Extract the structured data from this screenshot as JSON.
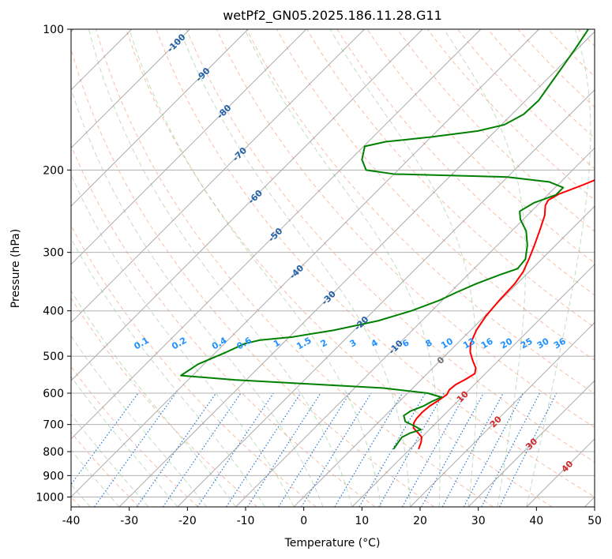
{
  "chart_data": {
    "type": "line",
    "title": "wetPf2_GN05.2025.186.11.28.G11",
    "xlabel": "Temperature (°C)",
    "ylabel": "Pressure (hPa)",
    "xlim": [
      -40,
      50
    ],
    "ylim": [
      1050,
      100
    ],
    "y_scale": "log",
    "skew": "45 degree skew-T",
    "grid": true,
    "x_ticks": [
      "-40",
      "-30",
      "-20",
      "-10",
      "0",
      "10",
      "20",
      "30",
      "40",
      "50"
    ],
    "y_ticks": [
      "100",
      "200",
      "300",
      "400",
      "500",
      "600",
      "700",
      "800",
      "900",
      "1000"
    ],
    "series": [
      {
        "key": "temperature",
        "color": "#ff0000",
        "points": [
          {
            "p": 790,
            "t": 11.5
          },
          {
            "p": 765,
            "t": 10.8
          },
          {
            "p": 745,
            "t": 10.0
          },
          {
            "p": 728,
            "t": 8.5
          },
          {
            "p": 712,
            "t": 7.0
          },
          {
            "p": 695,
            "t": 6.2
          },
          {
            "p": 680,
            "t": 5.9
          },
          {
            "p": 660,
            "t": 5.8
          },
          {
            "p": 640,
            "t": 6.0
          },
          {
            "p": 620,
            "t": 6.6
          },
          {
            "p": 604,
            "t": 7.0
          },
          {
            "p": 590,
            "t": 6.6
          },
          {
            "p": 575,
            "t": 6.8
          },
          {
            "p": 560,
            "t": 7.6
          },
          {
            "p": 545,
            "t": 8.2
          },
          {
            "p": 530,
            "t": 7.4
          },
          {
            "p": 510,
            "t": 5.5
          },
          {
            "p": 490,
            "t": 3.7
          },
          {
            "p": 470,
            "t": 2.3
          },
          {
            "p": 440,
            "t": 1.0
          },
          {
            "p": 410,
            "t": 0.2
          },
          {
            "p": 380,
            "t": -0.2
          },
          {
            "p": 350,
            "t": -0.4
          },
          {
            "p": 330,
            "t": -1.0
          },
          {
            "p": 310,
            "t": -2.2
          },
          {
            "p": 290,
            "t": -3.6
          },
          {
            "p": 270,
            "t": -5.2
          },
          {
            "p": 250,
            "t": -7.0
          },
          {
            "p": 238,
            "t": -8.6
          },
          {
            "p": 232,
            "t": -9.0
          },
          {
            "p": 225,
            "t": -8.2
          },
          {
            "p": 215,
            "t": -5.6
          },
          {
            "p": 205,
            "t": -3.2
          },
          {
            "p": 195,
            "t": -1.8
          },
          {
            "p": 185,
            "t": -1.4
          },
          {
            "p": 170,
            "t": -2.3
          },
          {
            "p": 158,
            "t": -3.2
          },
          {
            "p": 145,
            "t": -4.6
          },
          {
            "p": 132,
            "t": -6.5
          },
          {
            "p": 122,
            "t": -8.8
          },
          {
            "p": 115,
            "t": -10.8
          },
          {
            "p": 108,
            "t": -13.0
          },
          {
            "p": 100,
            "t": -15.5
          }
        ]
      },
      {
        "key": "dewpoint",
        "color": "#008000",
        "points": [
          {
            "p": 790,
            "t": 7.2
          },
          {
            "p": 775,
            "t": 7.0
          },
          {
            "p": 760,
            "t": 6.8
          },
          {
            "p": 745,
            "t": 6.6
          },
          {
            "p": 730,
            "t": 7.3
          },
          {
            "p": 718,
            "t": 8.6
          },
          {
            "p": 705,
            "t": 6.8
          },
          {
            "p": 690,
            "t": 4.5
          },
          {
            "p": 670,
            "t": 3.2
          },
          {
            "p": 655,
            "t": 3.6
          },
          {
            "p": 640,
            "t": 4.9
          },
          {
            "p": 625,
            "t": 5.6
          },
          {
            "p": 612,
            "t": 6.5
          },
          {
            "p": 600,
            "t": 3.5
          },
          {
            "p": 585,
            "t": -5.0
          },
          {
            "p": 572,
            "t": -20.0
          },
          {
            "p": 562,
            "t": -32.0
          },
          {
            "p": 550,
            "t": -42.0
          },
          {
            "p": 520,
            "t": -41.0
          },
          {
            "p": 490,
            "t": -38.2
          },
          {
            "p": 470,
            "t": -36.5
          },
          {
            "p": 462,
            "t": -34.5
          },
          {
            "p": 455,
            "t": -29.5
          },
          {
            "p": 440,
            "t": -23.5
          },
          {
            "p": 420,
            "t": -17.5
          },
          {
            "p": 400,
            "t": -13.5
          },
          {
            "p": 380,
            "t": -10.5
          },
          {
            "p": 365,
            "t": -8.9
          },
          {
            "p": 350,
            "t": -7.0
          },
          {
            "p": 335,
            "t": -4.5
          },
          {
            "p": 325,
            "t": -2.5
          },
          {
            "p": 310,
            "t": -2.8
          },
          {
            "p": 290,
            "t": -4.8
          },
          {
            "p": 270,
            "t": -7.5
          },
          {
            "p": 255,
            "t": -10.5
          },
          {
            "p": 245,
            "t": -12.0
          },
          {
            "p": 235,
            "t": -11.0
          },
          {
            "p": 226,
            "t": -8.6
          },
          {
            "p": 218,
            "t": -8.6
          },
          {
            "p": 212,
            "t": -12.0
          },
          {
            "p": 207,
            "t": -20.0
          },
          {
            "p": 204,
            "t": -40.0
          },
          {
            "p": 200,
            "t": -45.5
          },
          {
            "p": 190,
            "t": -48.0
          },
          {
            "p": 178,
            "t": -49.8
          },
          {
            "p": 174,
            "t": -47.0
          },
          {
            "p": 170,
            "t": -40.0
          },
          {
            "p": 165,
            "t": -33.0
          },
          {
            "p": 160,
            "t": -29.5
          },
          {
            "p": 152,
            "t": -28.0
          },
          {
            "p": 142,
            "t": -27.8
          },
          {
            "p": 130,
            "t": -28.7
          },
          {
            "p": 120,
            "t": -29.5
          },
          {
            "p": 110,
            "t": -30.4
          },
          {
            "p": 100,
            "t": -31.5
          }
        ]
      }
    ],
    "background_lines": {
      "dry_adiabats_color": "#f08050",
      "moist_adiabats_color": "#60b060",
      "mixing_ratio_color": "#1e78d8",
      "isotherm_color": "#808080"
    },
    "mixing_ratio_labels": [
      "0.1",
      "0.2",
      "0.4",
      "0.6",
      "1",
      "1.5",
      "2",
      "3",
      "4",
      "6",
      "8",
      "10",
      "13",
      "16",
      "20",
      "25",
      "30",
      "36"
    ],
    "mixing_ratio_values": [
      0.1,
      0.2,
      0.4,
      0.6,
      1,
      1.5,
      2,
      3,
      4,
      6,
      8,
      10,
      13,
      16,
      20,
      25,
      30,
      36
    ],
    "dark_blue_labels": [
      "-100",
      "-90",
      "-80",
      "-70",
      "-60",
      "-50",
      "-40",
      "-30",
      "-20",
      "-10"
    ],
    "gray_labels": [
      "0"
    ],
    "red_labels": [
      "10",
      "20",
      "30",
      "40"
    ]
  }
}
